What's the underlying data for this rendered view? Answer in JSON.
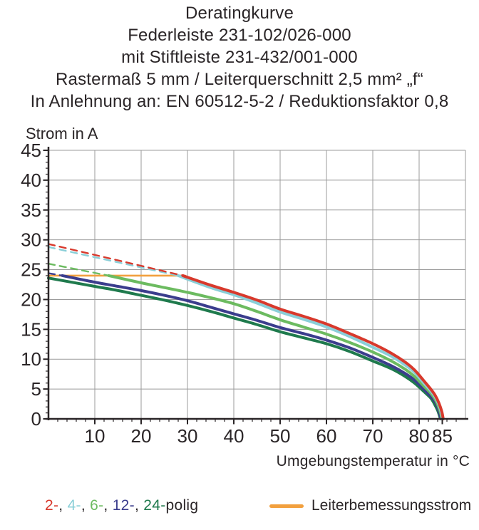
{
  "title": {
    "lines": [
      "Deratingkurve",
      "Federleiste 231-102/026-000",
      "mit Stiftleiste 231-432/001-000",
      "Rastermaß 5 mm / Leiterquerschnitt 2,5 mm² „f“",
      "In Anlehnung an: EN 60512-5-2 / Reduktionsfaktor 0,8"
    ]
  },
  "colors": {
    "pole2_red": "#d8392c",
    "pole4_cyan": "#8acfd8",
    "pole6_green": "#6cbb60",
    "pole12_blue": "#3b3d8d",
    "pole24_darkgreen": "#1f7a4d",
    "rated_orange": "#f2a03e",
    "grid_gray": "#9b9b9b",
    "axis_text": "#2a2527"
  },
  "chart_data": {
    "type": "line",
    "title": "Deratingkurve",
    "xlabel": "Umgebungstemperatur in °C",
    "ylabel": "Strom in A",
    "xlim": [
      0,
      90
    ],
    "ylim": [
      0,
      45
    ],
    "x_major_ticks": [
      10,
      20,
      30,
      40,
      50,
      60,
      70,
      80,
      85
    ],
    "x_minor_step": 2,
    "y_major_ticks": [
      0,
      5,
      10,
      15,
      20,
      25,
      30,
      35,
      40,
      45
    ],
    "y_minor_step": 1,
    "grid": true,
    "legend_position": "bottom",
    "series": [
      {
        "name": "Leiterbemessungsstrom",
        "color": "#f2a03e",
        "style": "solid",
        "width": 2.6,
        "points": [
          [
            0,
            24
          ],
          [
            29.5,
            24
          ]
        ]
      },
      {
        "name": "12-polig (gestrichelt)",
        "color": "#3b3d8d",
        "style": "dashed",
        "width": 2.4,
        "points": [
          [
            0,
            24.4
          ],
          [
            3,
            24
          ]
        ]
      },
      {
        "name": "6-polig (gestrichelt)",
        "color": "#6cbb60",
        "style": "dashed",
        "width": 2.4,
        "points": [
          [
            0,
            26.0
          ],
          [
            13,
            24
          ]
        ]
      },
      {
        "name": "4-polig (gestrichelt)",
        "color": "#8acfd8",
        "style": "dashed",
        "width": 2.4,
        "points": [
          [
            0,
            28.8
          ],
          [
            28,
            24
          ]
        ]
      },
      {
        "name": "2-polig (gestrichelt)",
        "color": "#d8392c",
        "style": "dashed",
        "width": 2.4,
        "points": [
          [
            0,
            29.3
          ],
          [
            29,
            24
          ]
        ]
      },
      {
        "name": "24-polig",
        "color": "#1f7a4d",
        "style": "solid",
        "width": 4,
        "points": [
          [
            0,
            23.6
          ],
          [
            10,
            22.2
          ],
          [
            15,
            21.5
          ],
          [
            20,
            20.7
          ],
          [
            25,
            19.9
          ],
          [
            30,
            19.0
          ],
          [
            35,
            18.0
          ],
          [
            40,
            16.9
          ],
          [
            45,
            15.8
          ],
          [
            50,
            14.6
          ],
          [
            55,
            13.6
          ],
          [
            60,
            12.6
          ],
          [
            65,
            11.3
          ],
          [
            70,
            9.7
          ],
          [
            74,
            8.4
          ],
          [
            77,
            7.1
          ],
          [
            79,
            6.0
          ],
          [
            81,
            4.6
          ],
          [
            82.5,
            3.5
          ],
          [
            83.3,
            2.5
          ],
          [
            84,
            1.4
          ],
          [
            84.4,
            0.5
          ],
          [
            84.6,
            0
          ]
        ]
      },
      {
        "name": "12-polig",
        "color": "#3b3d8d",
        "style": "solid",
        "width": 4,
        "points": [
          [
            3,
            24
          ],
          [
            10,
            22.9
          ],
          [
            15,
            22.2
          ],
          [
            20,
            21.5
          ],
          [
            25,
            20.7
          ],
          [
            30,
            19.8
          ],
          [
            35,
            18.7
          ],
          [
            40,
            17.6
          ],
          [
            45,
            16.5
          ],
          [
            50,
            15.3
          ],
          [
            55,
            14.3
          ],
          [
            60,
            13.2
          ],
          [
            65,
            11.9
          ],
          [
            70,
            10.3
          ],
          [
            74,
            8.9
          ],
          [
            77,
            7.6
          ],
          [
            79,
            6.5
          ],
          [
            81,
            5.0
          ],
          [
            82.5,
            3.8
          ],
          [
            83.5,
            2.8
          ],
          [
            84.1,
            1.7
          ],
          [
            84.5,
            0.7
          ],
          [
            84.7,
            0
          ]
        ]
      },
      {
        "name": "6-polig",
        "color": "#6cbb60",
        "style": "solid",
        "width": 4,
        "points": [
          [
            13,
            24
          ],
          [
            20,
            22.8
          ],
          [
            25,
            22.0
          ],
          [
            30,
            21.2
          ],
          [
            35,
            20.3
          ],
          [
            40,
            19.3
          ],
          [
            45,
            18.0
          ],
          [
            50,
            16.6
          ],
          [
            55,
            15.4
          ],
          [
            60,
            14.2
          ],
          [
            65,
            12.8
          ],
          [
            70,
            11.2
          ],
          [
            74,
            9.7
          ],
          [
            77,
            8.3
          ],
          [
            79,
            7.1
          ],
          [
            81,
            5.5
          ],
          [
            82.5,
            4.3
          ],
          [
            83.5,
            3.2
          ],
          [
            84.2,
            2.0
          ],
          [
            84.7,
            0.8
          ],
          [
            84.9,
            0
          ]
        ]
      },
      {
        "name": "4-polig",
        "color": "#8acfd8",
        "style": "solid",
        "width": 4,
        "points": [
          [
            28,
            24
          ],
          [
            35,
            22.0
          ],
          [
            40,
            20.8
          ],
          [
            45,
            19.4
          ],
          [
            50,
            17.9
          ],
          [
            55,
            16.7
          ],
          [
            60,
            15.4
          ],
          [
            65,
            13.8
          ],
          [
            70,
            12.0
          ],
          [
            74,
            10.5
          ],
          [
            77,
            9.0
          ],
          [
            79,
            7.8
          ],
          [
            81,
            6.0
          ],
          [
            82.5,
            4.7
          ],
          [
            83.5,
            3.6
          ],
          [
            84.3,
            2.3
          ],
          [
            84.8,
            1.0
          ],
          [
            85.05,
            0
          ]
        ]
      },
      {
        "name": "2-polig",
        "color": "#d8392c",
        "style": "solid",
        "width": 4,
        "points": [
          [
            29,
            24
          ],
          [
            35,
            22.4
          ],
          [
            40,
            21.2
          ],
          [
            45,
            19.9
          ],
          [
            50,
            18.4
          ],
          [
            55,
            17.2
          ],
          [
            60,
            15.9
          ],
          [
            65,
            14.3
          ],
          [
            70,
            12.6
          ],
          [
            74,
            11.0
          ],
          [
            77,
            9.5
          ],
          [
            79,
            8.2
          ],
          [
            81,
            6.4
          ],
          [
            82.5,
            5.0
          ],
          [
            83.5,
            3.9
          ],
          [
            84.3,
            2.6
          ],
          [
            84.9,
            1.2
          ],
          [
            85.2,
            0
          ]
        ]
      }
    ]
  },
  "legend": {
    "poles": {
      "segments": [
        {
          "text": "2-",
          "color": "#d8392c"
        },
        {
          "text": ", ",
          "color": "#2a2527"
        },
        {
          "text": "4-",
          "color": "#8acfd8"
        },
        {
          "text": ", ",
          "color": "#2a2527"
        },
        {
          "text": "6-",
          "color": "#6cbb60"
        },
        {
          "text": ", ",
          "color": "#2a2527"
        },
        {
          "text": "12-",
          "color": "#3b3d8d"
        },
        {
          "text": ", ",
          "color": "#2a2527"
        },
        {
          "text": "24-",
          "color": "#1f7a4d"
        },
        {
          "text": "polig",
          "color": "#2a2527"
        }
      ]
    },
    "conductor": {
      "label": "Leiterbemessungsstrom",
      "color": "#f2a03e"
    }
  }
}
